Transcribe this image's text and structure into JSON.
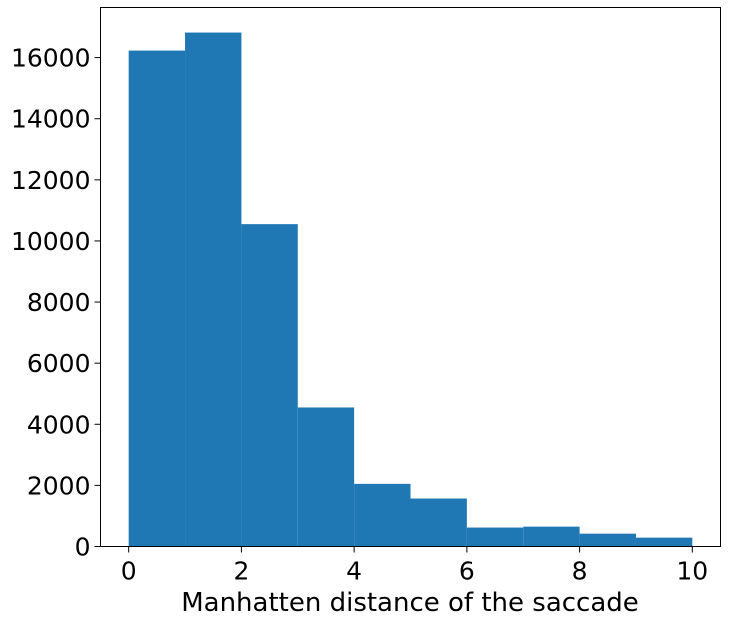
{
  "chart_data": {
    "type": "bar",
    "subtype": "histogram",
    "title": "",
    "xlabel": "Manhatten distance of the saccade",
    "ylabel": "",
    "xlim": [
      -0.5,
      10.5
    ],
    "ylim": [
      0,
      17640
    ],
    "bin_edges": [
      0,
      1,
      2,
      3,
      4,
      5,
      6,
      7,
      8,
      9,
      10
    ],
    "values": [
      16230,
      16820,
      10550,
      4550,
      2050,
      1570,
      620,
      650,
      420,
      290
    ],
    "x_ticks": [
      0,
      2,
      4,
      6,
      8,
      10
    ],
    "x_tick_labels": [
      "0",
      "2",
      "4",
      "6",
      "8",
      "10"
    ],
    "y_ticks": [
      0,
      2000,
      4000,
      6000,
      8000,
      10000,
      12000,
      14000,
      16000
    ],
    "y_tick_labels": [
      "0",
      "2000",
      "4000",
      "6000",
      "8000",
      "10000",
      "12000",
      "14000",
      "16000"
    ],
    "grid": false,
    "legend": "none",
    "bar_color": "#1f77b4",
    "axis_color": "#000000"
  }
}
